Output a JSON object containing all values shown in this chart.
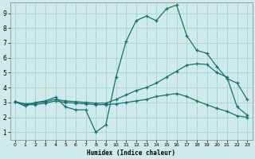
{
  "xlabel": "Humidex (Indice chaleur)",
  "bg_color": "#ceeaea",
  "grid_color": "#aed4d4",
  "line_color": "#1a7070",
  "xlim": [
    -0.5,
    23.5
  ],
  "ylim": [
    0.5,
    9.7
  ],
  "xticks": [
    0,
    1,
    2,
    3,
    4,
    5,
    6,
    7,
    8,
    9,
    10,
    11,
    12,
    13,
    14,
    15,
    16,
    17,
    18,
    19,
    20,
    21,
    22,
    23
  ],
  "yticks": [
    1,
    2,
    3,
    4,
    5,
    6,
    7,
    8,
    9
  ],
  "line1_x": [
    0,
    1,
    2,
    3,
    4,
    5,
    6,
    7,
    8,
    9,
    10,
    11,
    12,
    13,
    14,
    15,
    16,
    17,
    18,
    19,
    20,
    21,
    22,
    23
  ],
  "line1_y": [
    3.05,
    2.75,
    3.0,
    3.1,
    3.35,
    2.7,
    2.5,
    2.5,
    1.0,
    1.5,
    4.7,
    7.1,
    8.5,
    8.8,
    8.5,
    9.3,
    9.55,
    7.5,
    6.5,
    6.3,
    5.4,
    4.6,
    4.3,
    3.2
  ],
  "line2_x": [
    0,
    1,
    2,
    3,
    4,
    5,
    6,
    7,
    8,
    9,
    10,
    11,
    12,
    13,
    14,
    15,
    16,
    17,
    18,
    19,
    20,
    21,
    22,
    23
  ],
  "line2_y": [
    3.05,
    2.9,
    2.95,
    3.05,
    3.2,
    3.1,
    3.05,
    3.0,
    2.95,
    2.95,
    3.2,
    3.5,
    3.8,
    4.0,
    4.3,
    4.7,
    5.1,
    5.5,
    5.6,
    5.55,
    5.0,
    4.7,
    2.7,
    2.15
  ],
  "line3_x": [
    0,
    1,
    2,
    3,
    4,
    5,
    6,
    7,
    8,
    9,
    10,
    11,
    12,
    13,
    14,
    15,
    16,
    17,
    18,
    19,
    20,
    21,
    22,
    23
  ],
  "line3_y": [
    3.05,
    2.85,
    2.85,
    2.95,
    3.1,
    3.0,
    2.95,
    2.9,
    2.85,
    2.85,
    2.9,
    3.0,
    3.1,
    3.2,
    3.4,
    3.5,
    3.6,
    3.4,
    3.1,
    2.85,
    2.6,
    2.4,
    2.1,
    2.0
  ]
}
